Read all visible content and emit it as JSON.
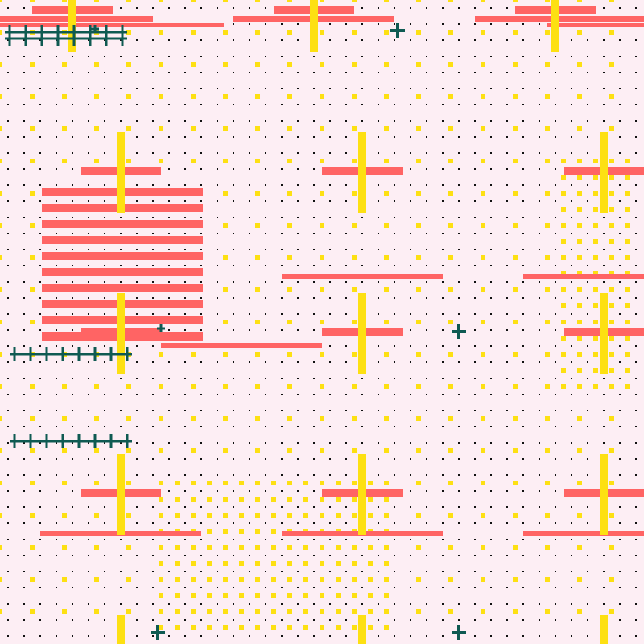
{
  "palette": {
    "background": "#fdeef4",
    "dot": "#111111",
    "coral": "#ff6464",
    "yellow": "#fde012",
    "teal": "#0f5a52"
  },
  "elements": {
    "dot_grid": "black-dot-grid",
    "yellow_squares": "yellow-square-dots",
    "coral_bars": "coral-horizontal-bars",
    "yellow_bars": "yellow-vertical-bars",
    "teal_crosses": "teal-plus-icons",
    "teal_fences": "teal-cross-stitch-rows"
  }
}
